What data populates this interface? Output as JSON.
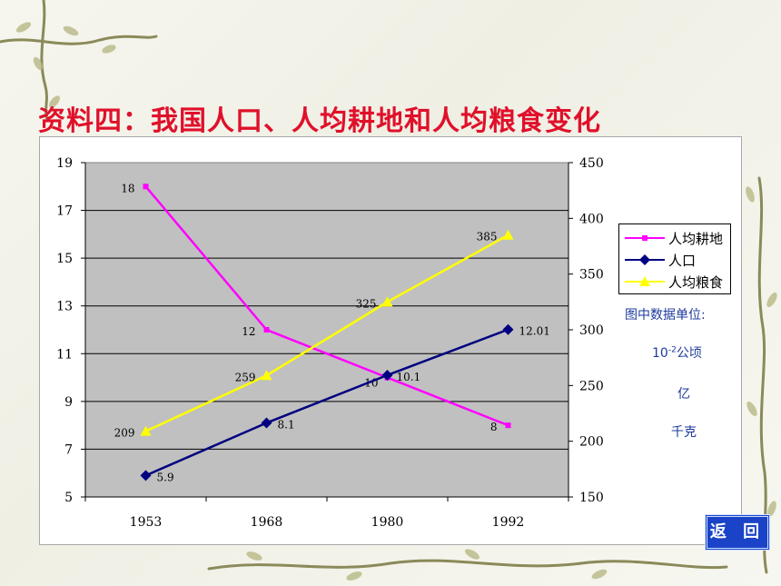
{
  "page": {
    "title": "资料四：我国人口、人均耕地和人均粮食变化",
    "back_button": "返 回"
  },
  "units": {
    "title": "图中数据单位:",
    "items": [
      {
        "base": "10",
        "sup": "-2",
        "rest": "公顷"
      },
      {
        "base": "亿",
        "sup": "",
        "rest": ""
      },
      {
        "base": "千克",
        "sup": "",
        "rest": ""
      }
    ]
  },
  "colors": {
    "farmland": "#ff00ff",
    "population": "#000080",
    "grain": "#ffff00",
    "plot_bg": "#c0c0c0",
    "title": "#e0102a",
    "units_text": "#1e3a9c",
    "back_button": "#1a43c8"
  },
  "chart_data": {
    "type": "line",
    "title": "",
    "xlabel": "",
    "ylabel": "",
    "categories": [
      "1953",
      "1968",
      "1980",
      "1992"
    ],
    "y_left": {
      "min": 5,
      "max": 19,
      "ticks": [
        5,
        7,
        9,
        11,
        13,
        15,
        17,
        19
      ]
    },
    "y_right": {
      "min": 150,
      "max": 450,
      "ticks": [
        150,
        200,
        250,
        300,
        350,
        400,
        450
      ]
    },
    "grid": true,
    "legend_position": "right",
    "series": [
      {
        "name": "人均耕地",
        "axis": "left",
        "marker": "square",
        "color": "#ff00ff",
        "values": [
          18,
          12,
          10,
          8
        ],
        "labels": [
          "18",
          "12",
          "10",
          "8"
        ]
      },
      {
        "name": "人口",
        "axis": "left",
        "marker": "diamond",
        "color": "#000080",
        "values": [
          5.9,
          8.1,
          10.1,
          12.01
        ],
        "labels": [
          "5.9",
          "8.1",
          "10.1",
          "12.01"
        ]
      },
      {
        "name": "人均粮食",
        "axis": "right",
        "marker": "triangle",
        "color": "#ffff00",
        "values": [
          209,
          259,
          325,
          385
        ],
        "labels": [
          "209",
          "259",
          "325",
          "385"
        ]
      }
    ]
  }
}
